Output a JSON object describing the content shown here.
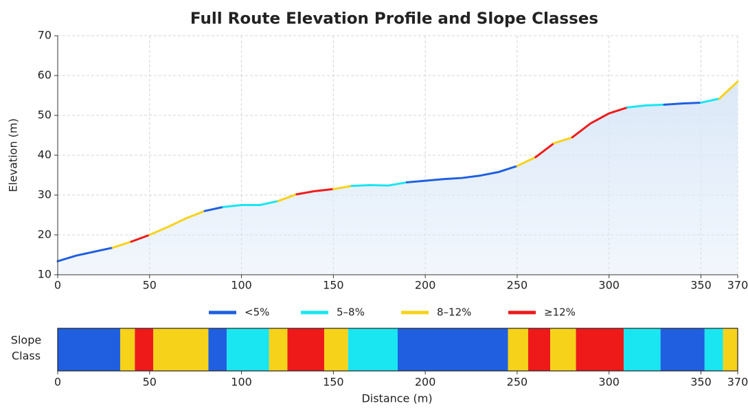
{
  "chart_data": {
    "type": "line",
    "title": "Full Route Elevation Profile and Slope Classes",
    "x_label": "Distance (m)",
    "y_label": "Elevation (m)",
    "x": [
      0,
      10,
      20,
      30,
      40,
      50,
      60,
      70,
      80,
      90,
      100,
      110,
      120,
      130,
      140,
      150,
      160,
      170,
      180,
      190,
      200,
      210,
      220,
      230,
      240,
      250,
      260,
      270,
      280,
      290,
      300,
      310,
      320,
      330,
      340,
      350,
      360,
      370
    ],
    "values": [
      13.4,
      14.8,
      15.8,
      16.8,
      18.3,
      20,
      22,
      24.2,
      26,
      27,
      27.5,
      27.5,
      28.5,
      30.2,
      31,
      31.5,
      32.3,
      32.5,
      32.4,
      33.2,
      33.6,
      34,
      34.3,
      34.9,
      35.8,
      37.3,
      39.5,
      43,
      44.5,
      48,
      50.5,
      52,
      52.5,
      52.7,
      53,
      53.2,
      54.2,
      58.5
    ],
    "xlim": [
      0,
      370
    ],
    "xticks": [
      0,
      50,
      100,
      150,
      200,
      250,
      300,
      350,
      370
    ],
    "ylim": [
      10,
      70
    ],
    "yticks": [
      10,
      20,
      30,
      40,
      50,
      60,
      70
    ],
    "grid": true,
    "area_color": "#dbe8f8",
    "classes": [
      {
        "name": "<5%",
        "color": "#1f5fe0"
      },
      {
        "name": "5–8%",
        "color": "#19e6f0"
      },
      {
        "name": "8–12%",
        "color": "#f7d21a"
      },
      {
        "name": "≥12%",
        "color": "#ee1a1a"
      }
    ],
    "strip": {
      "label": [
        "Slope",
        "Class"
      ],
      "xticks": [
        0,
        50,
        100,
        150,
        200,
        250,
        300,
        350,
        370
      ],
      "segments": [
        {
          "start": 0,
          "end": 34,
          "class": 0
        },
        {
          "start": 34,
          "end": 42,
          "class": 2
        },
        {
          "start": 42,
          "end": 52,
          "class": 3
        },
        {
          "start": 52,
          "end": 82,
          "class": 2
        },
        {
          "start": 82,
          "end": 92,
          "class": 0
        },
        {
          "start": 92,
          "end": 115,
          "class": 1
        },
        {
          "start": 115,
          "end": 125,
          "class": 2
        },
        {
          "start": 125,
          "end": 145,
          "class": 3
        },
        {
          "start": 145,
          "end": 158,
          "class": 2
        },
        {
          "start": 158,
          "end": 185,
          "class": 1
        },
        {
          "start": 185,
          "end": 245,
          "class": 0
        },
        {
          "start": 245,
          "end": 256,
          "class": 2
        },
        {
          "start": 256,
          "end": 268,
          "class": 3
        },
        {
          "start": 268,
          "end": 282,
          "class": 2
        },
        {
          "start": 282,
          "end": 308,
          "class": 3
        },
        {
          "start": 308,
          "end": 328,
          "class": 1
        },
        {
          "start": 328,
          "end": 352,
          "class": 0
        },
        {
          "start": 352,
          "end": 362,
          "class": 1
        },
        {
          "start": 362,
          "end": 370,
          "class": 2
        }
      ]
    }
  }
}
